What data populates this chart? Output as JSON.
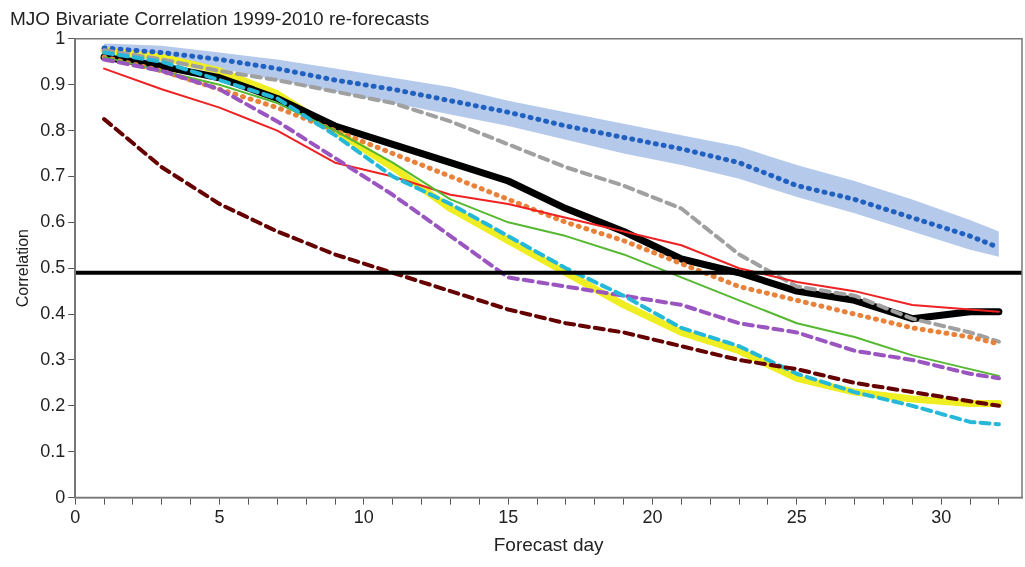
{
  "chart_data": {
    "type": "line",
    "title": "MJO Bivariate Correlation 1999-2010 re-forecasts",
    "xlabel": "Forecast day",
    "ylabel": "Correlation",
    "x": [
      1,
      3,
      5,
      7,
      9,
      11,
      13,
      15,
      17,
      19,
      21,
      23,
      25,
      27,
      29,
      31,
      32
    ],
    "xlim": [
      0,
      32.8
    ],
    "xticks": [
      0,
      {
        "value": 1,
        "label": null
      },
      {
        "value": 2,
        "label": null
      },
      {
        "value": 3,
        "label": null
      },
      {
        "value": 4,
        "label": null
      },
      5,
      {
        "value": 6,
        "label": null
      },
      {
        "value": 7,
        "label": null
      },
      {
        "value": 8,
        "label": null
      },
      {
        "value": 9,
        "label": null
      },
      10,
      {
        "value": 11,
        "label": null
      },
      {
        "value": 12,
        "label": null
      },
      {
        "value": 13,
        "label": null
      },
      {
        "value": 14,
        "label": null
      },
      15,
      {
        "value": 16,
        "label": null
      },
      {
        "value": 17,
        "label": null
      },
      {
        "value": 18,
        "label": null
      },
      {
        "value": 19,
        "label": null
      },
      20,
      {
        "value": 21,
        "label": null
      },
      {
        "value": 22,
        "label": null
      },
      {
        "value": 23,
        "label": null
      },
      {
        "value": 24,
        "label": null
      },
      25,
      {
        "value": 26,
        "label": null
      },
      {
        "value": 27,
        "label": null
      },
      {
        "value": 28,
        "label": null
      },
      {
        "value": 29,
        "label": null
      },
      30,
      {
        "value": 31,
        "label": null
      },
      {
        "value": 32,
        "label": null
      }
    ],
    "ylim": [
      0,
      1
    ],
    "yticks": [
      0,
      0.1,
      0.2,
      0.3,
      0.4,
      0.5,
      0.6,
      0.7,
      0.8,
      0.9,
      1
    ],
    "grid": false,
    "legend": false,
    "marker": "none",
    "series": [
      {
        "color": "#2060c0",
        "line_style": "dotted",
        "values": [
          0.98,
          0.97,
          0.955,
          0.935,
          0.91,
          0.89,
          0.865,
          0.84,
          0.81,
          0.785,
          0.76,
          0.73,
          0.68,
          0.65,
          0.61,
          0.57,
          0.545
        ],
        "lower": [
          0.965,
          0.95,
          0.935,
          0.91,
          0.885,
          0.86,
          0.835,
          0.81,
          0.78,
          0.75,
          0.725,
          0.695,
          0.655,
          0.62,
          0.58,
          0.54,
          0.525
        ],
        "upper": [
          0.99,
          0.985,
          0.97,
          0.955,
          0.935,
          0.915,
          0.895,
          0.865,
          0.84,
          0.815,
          0.79,
          0.765,
          0.725,
          0.69,
          0.65,
          0.605,
          0.58
        ]
      },
      {
        "color": "#a0a0a0",
        "line_style": "dashed",
        "values": [
          0.975,
          0.955,
          0.93,
          0.91,
          0.885,
          0.86,
          0.82,
          0.77,
          0.72,
          0.68,
          0.63,
          0.53,
          0.46,
          0.44,
          0.39,
          0.36,
          0.34
        ]
      },
      {
        "color": "#e8823a",
        "line_style": "dotted",
        "values": [
          0.96,
          0.93,
          0.89,
          0.85,
          0.8,
          0.75,
          0.7,
          0.65,
          0.6,
          0.56,
          0.51,
          0.46,
          0.43,
          0.4,
          0.37,
          0.35,
          0.335
        ]
      },
      {
        "color": "#ee2222",
        "line_style": "solid",
        "values": [
          0.935,
          0.89,
          0.85,
          0.8,
          0.73,
          0.7,
          0.66,
          0.64,
          0.61,
          0.58,
          0.55,
          0.5,
          0.47,
          0.45,
          0.42,
          0.41,
          0.405
        ]
      },
      {
        "color": "#55b830",
        "line_style": "solid",
        "values": [
          0.96,
          0.93,
          0.9,
          0.86,
          0.8,
          0.73,
          0.65,
          0.6,
          0.57,
          0.53,
          0.48,
          0.43,
          0.38,
          0.35,
          0.31,
          0.28,
          0.265
        ]
      },
      {
        "color": "#9b55c0",
        "line_style": "dashed",
        "values": [
          0.955,
          0.93,
          0.89,
          0.82,
          0.74,
          0.66,
          0.57,
          0.48,
          0.46,
          0.44,
          0.42,
          0.38,
          0.36,
          0.32,
          0.3,
          0.27,
          0.26
        ]
      },
      {
        "color": "#25b8d8",
        "line_style": "dashed",
        "values": [
          0.97,
          0.95,
          0.91,
          0.87,
          0.79,
          0.7,
          0.64,
          0.57,
          0.5,
          0.44,
          0.37,
          0.33,
          0.27,
          0.23,
          0.2,
          0.165,
          0.16
        ]
      },
      {
        "color": "#660000",
        "line_style": "dashed",
        "values": [
          0.825,
          0.72,
          0.64,
          0.58,
          0.53,
          0.49,
          0.45,
          0.41,
          0.38,
          0.36,
          0.33,
          0.3,
          0.28,
          0.25,
          0.23,
          0.21,
          0.2
        ]
      },
      {
        "color": "#eeee22",
        "line_style": "solid",
        "values": [
          0.975,
          0.96,
          0.93,
          0.88,
          0.8,
          0.72,
          0.63,
          0.56,
          0.49,
          0.42,
          0.36,
          0.32,
          0.26,
          0.23,
          0.215,
          0.205,
          0.205
        ]
      },
      {
        "color": "#000000",
        "line_style": "solid",
        "values": [
          0.96,
          0.94,
          0.915,
          0.87,
          0.81,
          0.77,
          0.73,
          0.69,
          0.63,
          0.58,
          0.52,
          0.49,
          0.45,
          0.43,
          0.39,
          0.405,
          0.405
        ]
      }
    ],
    "ref_lines": [
      {
        "axis": "y",
        "value": 0.49,
        "color": "#000000"
      }
    ]
  }
}
